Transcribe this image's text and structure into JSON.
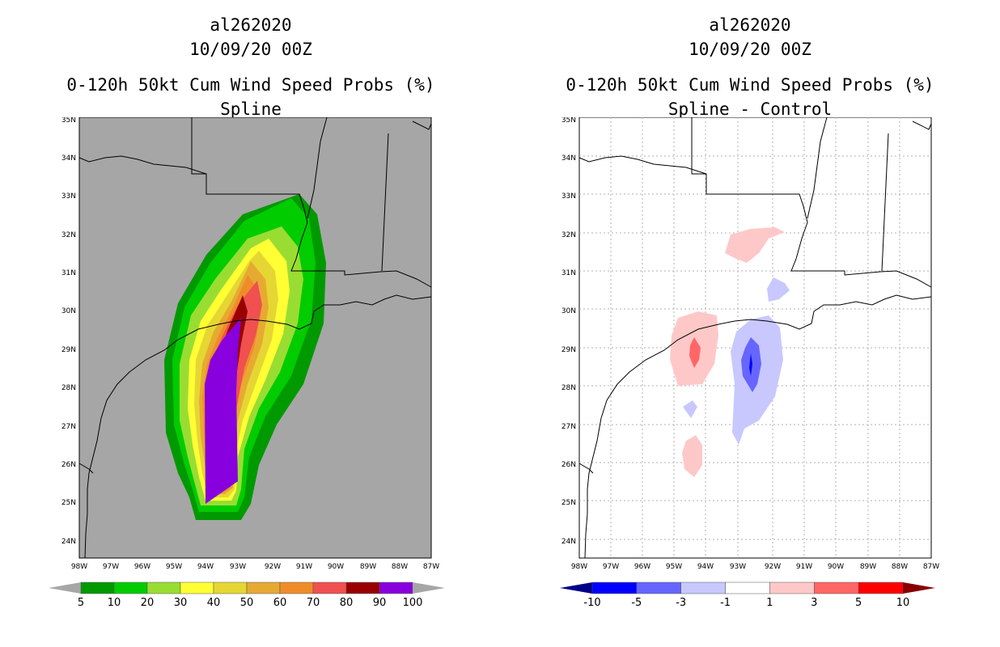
{
  "left": {
    "storm_id": "al262020",
    "datetime": "10/09/20 00Z",
    "product": "0-120h 50kt Cum Wind Speed Probs (%)",
    "subtitle": "Spline"
  },
  "right": {
    "storm_id": "al262020",
    "datetime": "10/09/20 00Z",
    "product": "0-120h 50kt Cum Wind Speed Probs (%)",
    "subtitle": "Spline - Control"
  },
  "axes": {
    "lat_labels": [
      "35N",
      "34N",
      "33N",
      "32N",
      "31N",
      "30N",
      "29N",
      "28N",
      "27N",
      "26N",
      "25N",
      "24N"
    ],
    "lon_labels": [
      "98W",
      "97W",
      "96W",
      "95W",
      "94W",
      "93W",
      "92W",
      "91W",
      "90W",
      "89W",
      "88W",
      "87W"
    ]
  },
  "colorbar_left": {
    "labels": [
      "5",
      "10",
      "20",
      "30",
      "40",
      "50",
      "60",
      "70",
      "80",
      "90",
      "100"
    ],
    "colors": [
      "#009900",
      "#00cc00",
      "#99dd33",
      "#ffff33",
      "#e6d633",
      "#e6aa33",
      "#f08c28",
      "#f05050",
      "#990000",
      "#8800dd"
    ],
    "ends": [
      "#a6a6a6",
      "#a6a6a6"
    ]
  },
  "colorbar_right": {
    "labels": [
      "-10",
      "-5",
      "-3",
      "-1",
      "1",
      "3",
      "5",
      "10"
    ],
    "colors": [
      "#0000ff",
      "#6666ff",
      "#c8c8ff",
      "#ffffff",
      "#ffc8c8",
      "#ff6666",
      "#ff0000"
    ],
    "ends": [
      "#000088",
      "#880000"
    ]
  }
}
